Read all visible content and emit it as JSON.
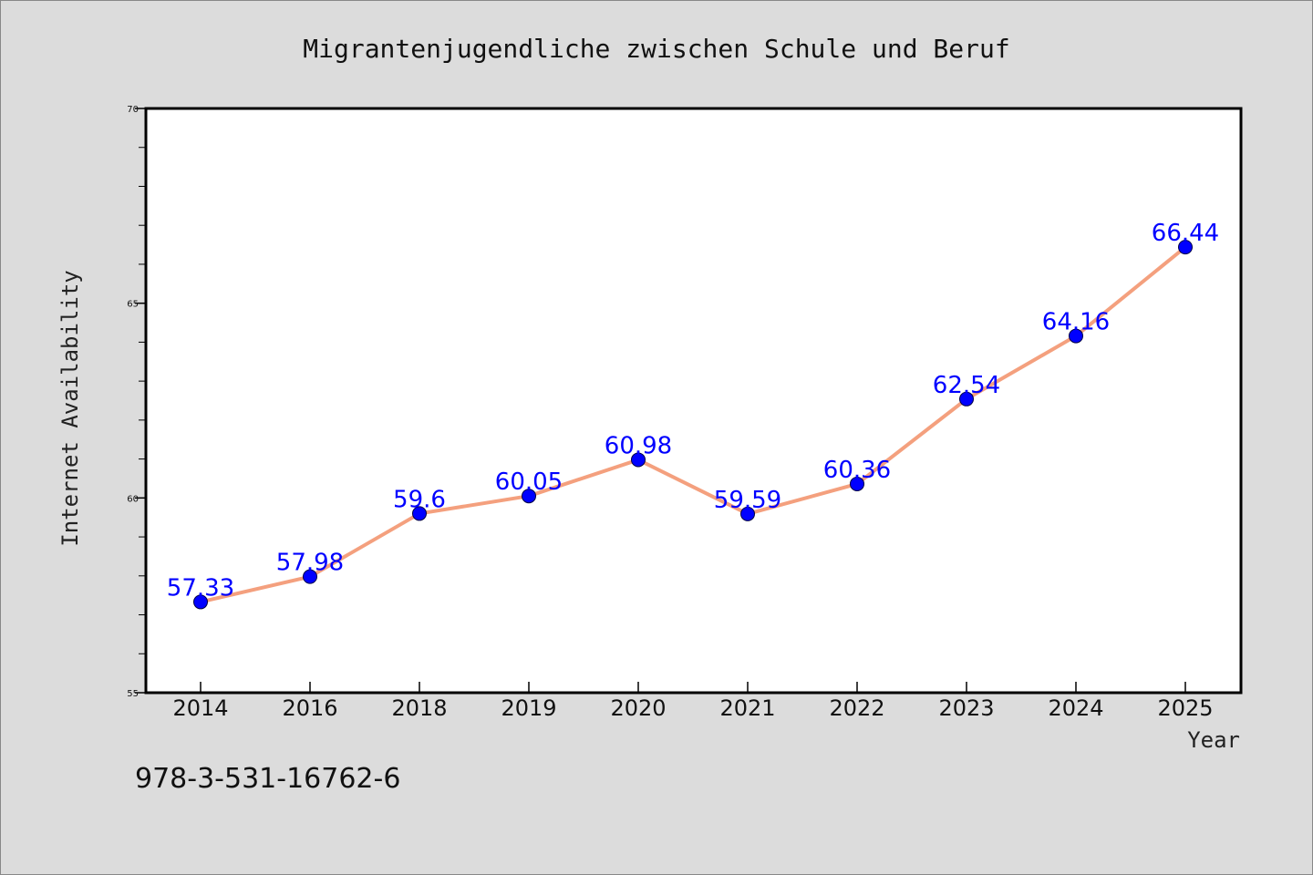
{
  "chart_data": {
    "type": "line",
    "title": "Migrantenjugendliche zwischen Schule und Beruf",
    "xlabel": "Year",
    "ylabel": "Internet Availability",
    "categories": [
      "2014",
      "2016",
      "2018",
      "2019",
      "2020",
      "2021",
      "2022",
      "2023",
      "2024",
      "2025"
    ],
    "series": [
      {
        "values": [
          57.33,
          57.98,
          59.6,
          60.05,
          60.98,
          59.59,
          60.36,
          62.54,
          64.16,
          66.44
        ],
        "data_labels": [
          "57.33",
          "57.98",
          "59.6",
          "60.05",
          "60.98",
          "59.59",
          "60.36",
          "62.54",
          "64.16",
          "66.44"
        ]
      }
    ],
    "ylim": [
      55,
      70
    ],
    "yticks": [
      55,
      60,
      65,
      70
    ],
    "ytick_labels": [
      "55",
      "60",
      "65",
      "70"
    ],
    "y_minor_step": 1,
    "grid": false,
    "colors": {
      "line": "#f4a07e",
      "marker": "#0000ff",
      "data_label": "#0000ff",
      "plot_bg": "#ffffff",
      "figure_bg": "#dcdcdc"
    }
  },
  "footer": {
    "isbn": "978-3-531-16762-6"
  }
}
